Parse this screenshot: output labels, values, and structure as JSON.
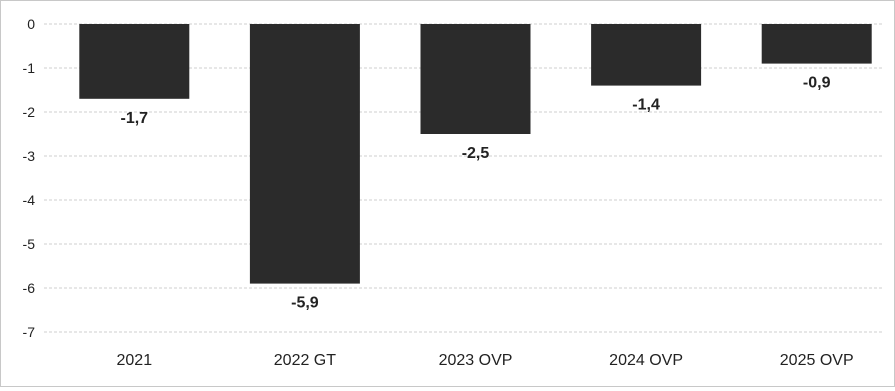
{
  "chart_data": {
    "type": "bar",
    "categories": [
      "2021",
      "2022 GT",
      "2023 OVP",
      "2024 OVP",
      "2025 OVP"
    ],
    "values": [
      -1.7,
      -5.9,
      -2.5,
      -1.4,
      -0.9
    ],
    "data_labels": [
      "-1,7",
      "-5,9",
      "-2,5",
      "-1,4",
      "-0,9"
    ],
    "y_ticks": [
      0,
      -1,
      -2,
      -3,
      -4,
      -5,
      -6,
      -7
    ],
    "y_tick_labels": [
      "0",
      "-1",
      "-2",
      "-3",
      "-4",
      "-5",
      "-6",
      "-7"
    ],
    "ylim": [
      -7,
      0
    ],
    "title": "",
    "xlabel": "",
    "ylabel": "",
    "grid": true,
    "legend": "none",
    "colors": {
      "bar": "#2b2b2b",
      "grid": "#cfcfcf",
      "text": "#222222"
    }
  }
}
